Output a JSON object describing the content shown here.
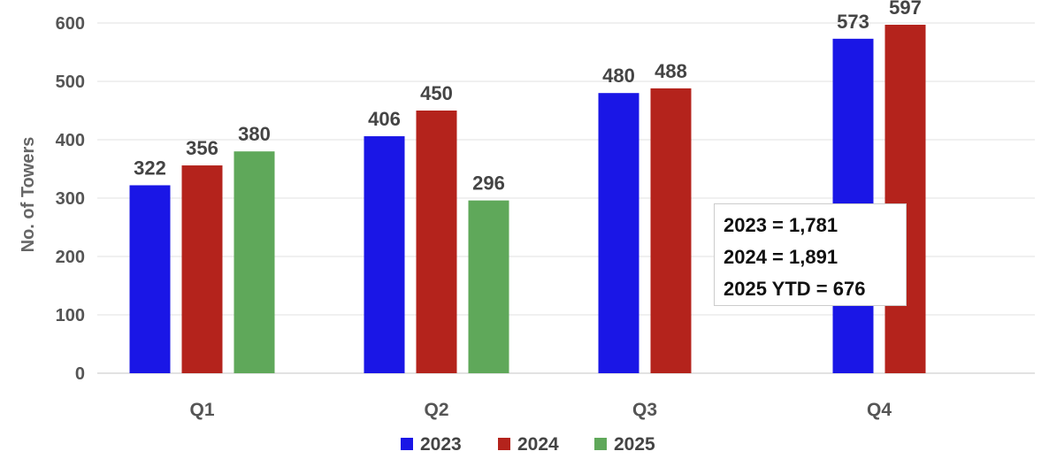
{
  "chart_data": {
    "type": "bar",
    "categories": [
      "Q1",
      "Q2",
      "Q3",
      "Q4"
    ],
    "series": [
      {
        "name": "2023",
        "color": "#1a16e6",
        "values": [
          322,
          406,
          480,
          573
        ]
      },
      {
        "name": "2024",
        "color": "#b4231c",
        "values": [
          356,
          450,
          488,
          597
        ]
      },
      {
        "name": "2025",
        "color": "#5fa85a",
        "values": [
          380,
          296,
          null,
          null
        ]
      }
    ],
    "ylabel": "No. of Towers",
    "xlabel": "",
    "ylim": [
      0,
      600
    ],
    "yticks": [
      0,
      100,
      200,
      300,
      400,
      500,
      600
    ],
    "grid": true,
    "legend": "bottom-center",
    "annotation": [
      "2023 = 1,781",
      "2024 = 1,891",
      "2025 YTD = 676"
    ]
  }
}
